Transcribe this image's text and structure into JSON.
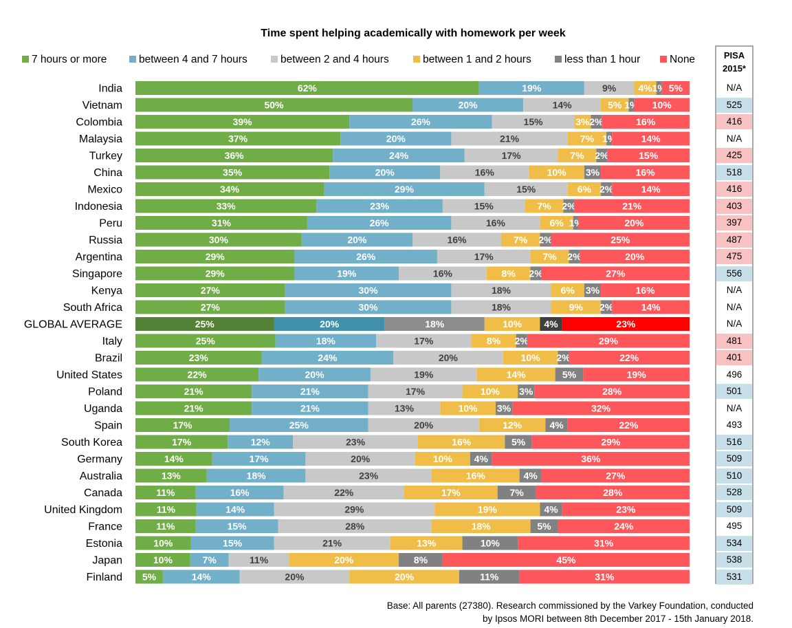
{
  "chart_data": {
    "type": "bar",
    "orientation": "horizontal",
    "stacked": true,
    "percent": true,
    "title": "Time spent helping academically with homework per week",
    "legend_position": "top",
    "series": [
      {
        "name": "7 hours or more",
        "color": "#70ad47",
        "highlight_color": "#538135",
        "values": [
          62,
          50,
          39,
          37,
          36,
          35,
          34,
          33,
          31,
          30,
          29,
          29,
          27,
          27,
          25,
          25,
          23,
          22,
          21,
          21,
          17,
          17,
          14,
          13,
          11,
          11,
          11,
          10,
          10,
          5
        ]
      },
      {
        "name": "between 4 and 7 hours",
        "color": "#72b0ca",
        "highlight_color": "#4190ab",
        "values": [
          19,
          20,
          26,
          20,
          24,
          20,
          29,
          23,
          26,
          20,
          26,
          19,
          30,
          30,
          20,
          18,
          24,
          20,
          21,
          21,
          25,
          12,
          17,
          18,
          16,
          14,
          15,
          15,
          7,
          14
        ]
      },
      {
        "name": "between 2 and 4 hours",
        "color": "#c8c8c8",
        "highlight_color": "#8c8c8c",
        "values": [
          9,
          14,
          15,
          21,
          17,
          16,
          15,
          15,
          16,
          16,
          17,
          16,
          18,
          18,
          18,
          17,
          20,
          19,
          17,
          13,
          20,
          23,
          20,
          23,
          22,
          29,
          28,
          21,
          11,
          20
        ]
      },
      {
        "name": "between 1 and 2 hours",
        "color": "#f0be48",
        "highlight_color": "#f0be48",
        "values": [
          4,
          5,
          3,
          7,
          7,
          10,
          6,
          7,
          6,
          7,
          7,
          8,
          6,
          9,
          10,
          8,
          10,
          14,
          10,
          10,
          12,
          16,
          10,
          16,
          17,
          19,
          18,
          13,
          20,
          20
        ]
      },
      {
        "name": "less than 1 hour",
        "color": "#818181",
        "highlight_color": "#3f3f3f",
        "values": [
          1,
          1,
          2,
          1,
          2,
          3,
          2,
          2,
          1,
          2,
          2,
          2,
          3,
          2,
          4,
          2,
          2,
          5,
          3,
          3,
          4,
          5,
          4,
          4,
          7,
          4,
          5,
          10,
          8,
          11
        ]
      },
      {
        "name": "None",
        "color": "#fd575b",
        "highlight_color": "#ff0000",
        "values": [
          5,
          10,
          16,
          14,
          15,
          16,
          14,
          21,
          20,
          25,
          20,
          27,
          16,
          14,
          23,
          29,
          22,
          19,
          28,
          32,
          22,
          29,
          36,
          27,
          28,
          23,
          24,
          31,
          45,
          31
        ]
      }
    ],
    "categories": [
      "India",
      "Vietnam",
      "Colombia",
      "Malaysia",
      "Turkey",
      "China",
      "Mexico",
      "Indonesia",
      "Peru",
      "Russia",
      "Argentina",
      "Singapore",
      "Kenya",
      "South Africa",
      "GLOBAL AVERAGE",
      "Italy",
      "Brazil",
      "United States",
      "Poland",
      "Uganda",
      "Spain",
      "South Korea",
      "Germany",
      "Australia",
      "Canada",
      "United Kingdom",
      "France",
      "Estonia",
      "Japan",
      "Finland"
    ],
    "highlight_category": "GLOBAL AVERAGE",
    "labels": [
      [
        "62%",
        "19%",
        "9%",
        "4%",
        "1%",
        "5%"
      ],
      [
        "50%",
        "20%",
        "14%",
        "5%",
        "1%",
        "10%"
      ],
      [
        "39%",
        "26%",
        "15%",
        "3%",
        "2%",
        "16%"
      ],
      [
        "37%",
        "20%",
        "21%",
        "7%",
        "1%",
        "14%"
      ],
      [
        "36%",
        "24%",
        "17%",
        "7%",
        "2%",
        "15%"
      ],
      [
        "35%",
        "20%",
        "16%",
        "10%",
        "3%",
        "16%"
      ],
      [
        "34%",
        "29%",
        "15%",
        "6%",
        "2%",
        "14%"
      ],
      [
        "33%",
        "23%",
        "15%",
        "7%",
        "2%",
        "21%"
      ],
      [
        "31%",
        "26%",
        "16%",
        "6%",
        "1%",
        "20%"
      ],
      [
        "30%",
        "20%",
        "16%",
        "7%",
        "2%",
        "25%"
      ],
      [
        "29%",
        "26%",
        "17%",
        "7%",
        "2%",
        "20%"
      ],
      [
        "29%",
        "19%",
        "16%",
        "8%",
        "2%",
        "27%"
      ],
      [
        "27%",
        "30%",
        "18%",
        "6%",
        "3%",
        "16%"
      ],
      [
        "27%",
        "30%",
        "18%",
        "9%",
        "2%",
        "14%"
      ],
      [
        "25%",
        "20%",
        "18%",
        "10%",
        "4%",
        "23%"
      ],
      [
        "25%",
        "18%",
        "17%",
        "8%",
        "2%",
        "29%"
      ],
      [
        "23%",
        "24%",
        "20%",
        "10%",
        "2%",
        "22%"
      ],
      [
        "22%",
        "20%",
        "19%",
        "14%",
        "5%",
        "19%"
      ],
      [
        "21%",
        "21%",
        "17%",
        "10%",
        "3%",
        "28%"
      ],
      [
        "21%",
        "21%",
        "13%",
        "10%",
        "3%",
        "32%"
      ],
      [
        "17%",
        "25%",
        "20%",
        "12%",
        "4%",
        "22%"
      ],
      [
        "17%",
        "12%",
        "23%",
        "16%",
        "5%",
        "29%"
      ],
      [
        "14%",
        "17%",
        "20%",
        "10%",
        "4%",
        "36%"
      ],
      [
        "13%",
        "18%",
        "23%",
        "16%",
        "4%",
        "27%"
      ],
      [
        "11%",
        "16%",
        "22%",
        "17%",
        "7%",
        "28%"
      ],
      [
        "11%",
        "14%",
        "29%",
        "19%",
        "4%",
        "23%"
      ],
      [
        "11%",
        "15%",
        "28%",
        "18%",
        "5%",
        "24%"
      ],
      [
        "10%",
        "15%",
        "21%",
        "13%",
        "10%",
        "31%"
      ],
      [
        "10%",
        "7%",
        "11%",
        "20%",
        "8%",
        "45%"
      ],
      [
        "5%",
        "14%",
        "20%",
        "20%",
        "11%",
        "31%"
      ]
    ],
    "pisa": {
      "header": [
        "PISA",
        "2015*"
      ],
      "values": [
        "N/A",
        "525",
        "416",
        "N/A",
        "425",
        "518",
        "416",
        "403",
        "397",
        "487",
        "475",
        "556",
        "N/A",
        "N/A",
        "N/A",
        "481",
        "401",
        "496",
        "501",
        "N/A",
        "493",
        "516",
        "509",
        "510",
        "528",
        "509",
        "495",
        "534",
        "538",
        "531"
      ],
      "highlight": [
        "none",
        "blue",
        "red",
        "none",
        "red",
        "blue",
        "red",
        "red",
        "red",
        "red",
        "red",
        "blue",
        "none",
        "none",
        "none",
        "red",
        "red",
        "none",
        "blue",
        "none",
        "none",
        "blue",
        "blue",
        "blue",
        "blue",
        "blue",
        "none",
        "blue",
        "blue",
        "blue"
      ],
      "highlight_colors": {
        "blue": "#c6dfe9",
        "red": "#f8c1c2",
        "none": "#ffffff"
      }
    }
  },
  "footnote": {
    "line1": "Base: All parents (27380). Research commissioned by the Varkey Foundation, conducted",
    "line2": "by Ipsos MORI between 8th December 2017 - 15th January 2018."
  }
}
